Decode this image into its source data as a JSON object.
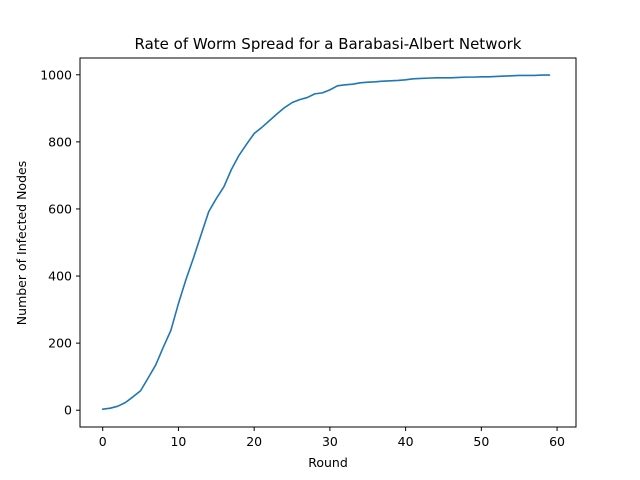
{
  "chart_data": {
    "type": "line",
    "title": "Rate of Worm Spread for a Barabasi-Albert Network",
    "xlabel": "Round",
    "ylabel": "Number of Infected Nodes",
    "xlim": [
      -3,
      62.5
    ],
    "ylim": [
      -50,
      1050
    ],
    "xticks": [
      0,
      10,
      20,
      30,
      40,
      50,
      60
    ],
    "yticks": [
      0,
      200,
      400,
      600,
      800,
      1000
    ],
    "grid": false,
    "series": [
      {
        "color": "#1f77b4",
        "x": [
          0,
          1,
          2,
          3,
          4,
          5,
          6,
          7,
          8,
          9,
          10,
          11,
          12,
          13,
          14,
          15,
          16,
          17,
          18,
          19,
          20,
          21,
          22,
          23,
          24,
          25,
          26,
          27,
          28,
          29,
          30,
          31,
          32,
          33,
          34,
          35,
          36,
          37,
          38,
          39,
          40,
          41,
          42,
          43,
          44,
          45,
          46,
          47,
          48,
          49,
          50,
          51,
          52,
          53,
          54,
          55,
          56,
          57,
          58,
          59
        ],
        "y": [
          3,
          6,
          12,
          23,
          40,
          58,
          96,
          135,
          188,
          238,
          318,
          390,
          455,
          524,
          592,
          631,
          666,
          718,
          760,
          793,
          825,
          843,
          863,
          883,
          902,
          917,
          926,
          932,
          943,
          946,
          955,
          967,
          970,
          972,
          976,
          978,
          979,
          981,
          982,
          983,
          985,
          988,
          989,
          990,
          991,
          991,
          991,
          992,
          993,
          993,
          994,
          994,
          995,
          996,
          997,
          998,
          998,
          998,
          999,
          999
        ]
      }
    ]
  }
}
